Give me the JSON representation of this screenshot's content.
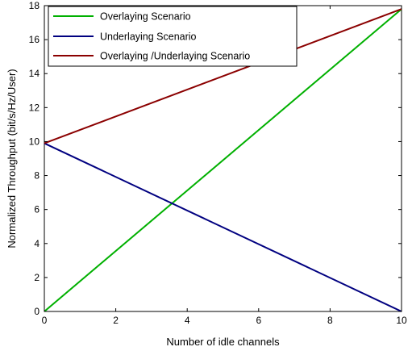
{
  "chart_data": {
    "type": "line",
    "xlabel": "Number of idle channels",
    "ylabel": "Normalized Throughput (bit/s/Hz/User)",
    "xlim": [
      0,
      10
    ],
    "ylim": [
      0,
      18
    ],
    "xticks": [
      0,
      2,
      4,
      6,
      8,
      10
    ],
    "yticks": [
      0,
      2,
      4,
      6,
      8,
      10,
      12,
      14,
      16,
      18
    ],
    "grid": false,
    "legend_position": "top-left",
    "series": [
      {
        "name": "Overlaying Scenario",
        "color": "#00b000",
        "x": [
          0,
          10
        ],
        "y": [
          0,
          17.8
        ]
      },
      {
        "name": "Underlaying Scenario",
        "color": "#000080",
        "x": [
          0,
          10
        ],
        "y": [
          9.9,
          0
        ]
      },
      {
        "name": "Overlaying /Underlaying Scenario",
        "color": "#8b0000",
        "x": [
          0,
          10
        ],
        "y": [
          9.9,
          17.8
        ]
      }
    ]
  }
}
